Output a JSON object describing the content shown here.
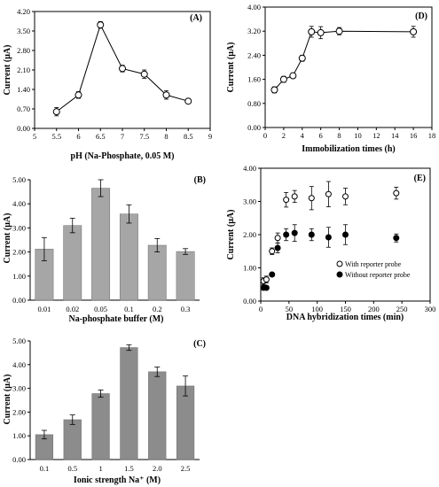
{
  "chart_data": [
    {
      "panel": "(A)",
      "type": "line",
      "xlabel": "pH (Na-Phosphate, 0.05 M)",
      "ylabel": "Current (μA)",
      "xlim": [
        5,
        9
      ],
      "ylim": [
        0,
        4.2
      ],
      "xticks": [
        "5",
        "5.5",
        "6",
        "6.5",
        "7",
        "7.5",
        "8",
        "8.5",
        "9"
      ],
      "yticks": [
        "0.00",
        "0.70",
        "1.40",
        "2.10",
        "2.80",
        "3.50",
        "4.20"
      ],
      "series": [
        {
          "x": [
            5.5,
            6,
            6.5,
            7,
            7.5,
            8,
            8.5
          ],
          "values": [
            0.6,
            1.2,
            3.72,
            2.15,
            1.95,
            1.2,
            0.98
          ],
          "errors": [
            0.15,
            0.12,
            0.12,
            0.12,
            0.15,
            0.15,
            0.02
          ]
        }
      ]
    },
    {
      "panel": "(B)",
      "type": "bar",
      "xlabel": "Na-phosphate buffer (M)",
      "ylabel": "Current (μA)",
      "ylim": [
        0,
        5
      ],
      "yticks": [
        "0.00",
        "1.00",
        "2.00",
        "3.00",
        "4.00",
        "5.00"
      ],
      "categories": [
        "0.01",
        "0.02",
        "0.05",
        "0.1",
        "0.2",
        "0.3"
      ],
      "values": [
        2.12,
        3.1,
        4.65,
        3.58,
        2.28,
        2.02
      ],
      "errors": [
        0.48,
        0.3,
        0.35,
        0.38,
        0.28,
        0.12
      ]
    },
    {
      "panel": "(C)",
      "type": "bar",
      "xlabel": "Ionic strength Na⁺ (M)",
      "ylabel": "Current (μA)",
      "ylim": [
        0,
        5
      ],
      "yticks": [
        "0.00",
        "1.00",
        "2.00",
        "3.00",
        "4.00",
        "5.00"
      ],
      "categories": [
        "0.1",
        "0.5",
        "1",
        "1.5",
        "2.0",
        "2.5"
      ],
      "values": [
        1.05,
        1.68,
        2.78,
        4.72,
        3.7,
        3.1
      ],
      "errors": [
        0.18,
        0.2,
        0.15,
        0.12,
        0.2,
        0.42
      ]
    },
    {
      "panel": "(D)",
      "type": "line",
      "xlabel": "Immobilization times (h)",
      "ylabel": "Current (μA)",
      "xlim": [
        0,
        18
      ],
      "ylim": [
        0,
        4
      ],
      "xticks": [
        "0",
        "2",
        "4",
        "6",
        "8",
        "10",
        "12",
        "14",
        "16",
        "18"
      ],
      "yticks": [
        "0.00",
        "0.80",
        "1.60",
        "2.40",
        "3.20",
        "4.00"
      ],
      "series": [
        {
          "x": [
            1,
            2,
            3,
            4,
            5,
            6,
            8,
            16
          ],
          "values": [
            1.25,
            1.6,
            1.72,
            2.3,
            3.18,
            3.15,
            3.2,
            3.18
          ],
          "errors": [
            0.1,
            0.1,
            0.08,
            0.1,
            0.18,
            0.2,
            0.12,
            0.18
          ]
        }
      ]
    },
    {
      "panel": "(E)",
      "type": "scatter",
      "xlabel": "DNA hybridization times (min)",
      "ylabel": "Current (μA)",
      "xlim": [
        0,
        300
      ],
      "ylim": [
        0,
        4
      ],
      "xticks": [
        "0",
        "50",
        "100",
        "150",
        "200",
        "250",
        "300"
      ],
      "yticks": [
        "0.00",
        "1.00",
        "2.00",
        "3.00",
        "4.00"
      ],
      "legend_position": "bottom-right",
      "series": [
        {
          "name": "With reporter probe",
          "marker": "open-circle",
          "x": [
            5,
            10,
            20,
            30,
            45,
            60,
            90,
            120,
            150,
            240
          ],
          "values": [
            0.6,
            0.65,
            1.5,
            1.9,
            3.05,
            3.15,
            3.1,
            3.22,
            3.15,
            3.25
          ],
          "errors": [
            0.1,
            0.1,
            0.1,
            0.15,
            0.22,
            0.18,
            0.35,
            0.38,
            0.25,
            0.18
          ]
        },
        {
          "name": "Without reporter probe",
          "marker": "filled-circle",
          "x": [
            5,
            10,
            20,
            30,
            45,
            60,
            90,
            120,
            150,
            240
          ],
          "values": [
            0.4,
            0.4,
            0.8,
            1.6,
            2.0,
            2.05,
            2.0,
            1.92,
            2.0,
            1.9
          ],
          "errors": [
            0.05,
            0.05,
            0.05,
            0.15,
            0.18,
            0.25,
            0.18,
            0.3,
            0.3,
            0.12
          ]
        }
      ]
    }
  ]
}
